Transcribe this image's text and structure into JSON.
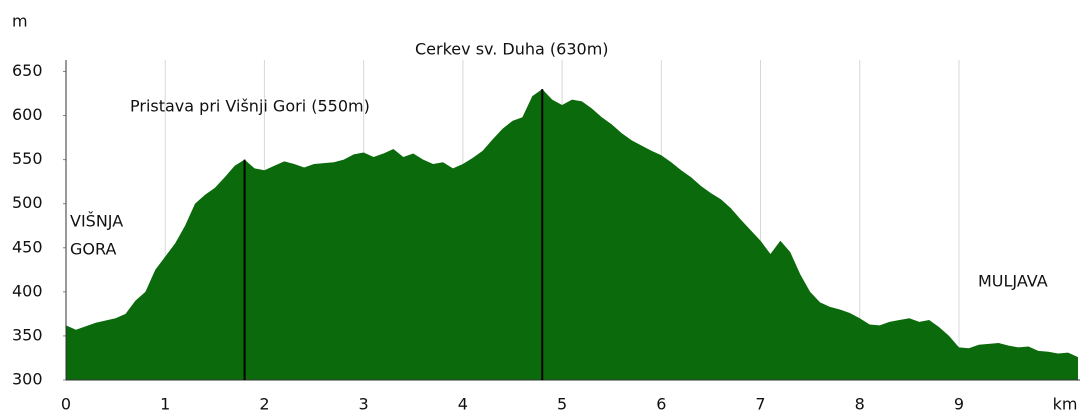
{
  "chart_data": {
    "type": "area",
    "y_label": "m",
    "x_label": "km",
    "x": [
      0,
      0.1,
      0.3,
      0.5,
      0.6,
      0.7,
      0.8,
      0.9,
      1.0,
      1.1,
      1.2,
      1.3,
      1.4,
      1.5,
      1.6,
      1.7,
      1.8,
      1.9,
      2.0,
      2.1,
      2.2,
      2.3,
      2.4,
      2.5,
      2.6,
      2.7,
      2.8,
      2.9,
      3.0,
      3.1,
      3.2,
      3.3,
      3.4,
      3.5,
      3.6,
      3.7,
      3.8,
      3.9,
      4.0,
      4.1,
      4.2,
      4.3,
      4.4,
      4.5,
      4.6,
      4.7,
      4.8,
      4.9,
      5.0,
      5.1,
      5.2,
      5.3,
      5.4,
      5.5,
      5.6,
      5.7,
      5.8,
      5.9,
      6.0,
      6.1,
      6.2,
      6.3,
      6.4,
      6.5,
      6.6,
      6.7,
      6.8,
      6.9,
      7.0,
      7.1,
      7.2,
      7.3,
      7.4,
      7.5,
      7.6,
      7.7,
      7.8,
      7.9,
      8.0,
      8.1,
      8.2,
      8.3,
      8.4,
      8.5,
      8.6,
      8.7,
      8.8,
      8.9,
      9.0,
      9.1,
      9.2,
      9.3,
      9.4,
      9.5,
      9.6,
      9.7,
      9.8,
      9.9,
      10.0,
      10.1,
      10.2
    ],
    "series": [
      {
        "color": "#0b6a0b",
        "values": [
          362,
          357,
          365,
          370,
          375,
          390,
          400,
          425,
          440,
          455,
          475,
          500,
          510,
          518,
          530,
          543,
          550,
          540,
          538,
          543,
          548,
          545,
          541,
          545,
          546,
          547,
          550,
          556,
          558,
          553,
          557,
          562,
          553,
          557,
          550,
          545,
          547,
          540,
          545,
          552,
          560,
          573,
          585,
          594,
          598,
          622,
          630,
          618,
          612,
          618,
          616,
          608,
          598,
          590,
          580,
          572,
          566,
          560,
          555,
          547,
          538,
          530,
          520,
          512,
          505,
          495,
          482,
          470,
          458,
          443,
          458,
          445,
          420,
          400,
          388,
          383,
          380,
          376,
          370,
          363,
          362,
          366,
          368,
          370,
          366,
          368,
          360,
          350,
          337,
          336,
          340,
          341,
          342,
          339,
          337,
          338,
          333,
          332,
          330,
          331,
          326
        ]
      }
    ],
    "xlim": [
      0,
      10.22
    ],
    "ylim": [
      300,
      663
    ],
    "xticks": [
      0,
      1,
      2,
      3,
      4,
      5,
      6,
      7,
      8,
      9
    ],
    "yticks": [
      300,
      350,
      400,
      450,
      500,
      550,
      600,
      650
    ],
    "grid": true,
    "annotations": [
      {
        "text": "Pristava pri Višnji Gori (550m)",
        "x": 1.8,
        "y": 550
      },
      {
        "text": "Cerkev sv. Duha (630m)",
        "x": 4.8,
        "y": 630
      }
    ],
    "place_labels": [
      [
        "VIŠNJA",
        "GORA"
      ],
      [
        "MULJAVA"
      ]
    ]
  }
}
